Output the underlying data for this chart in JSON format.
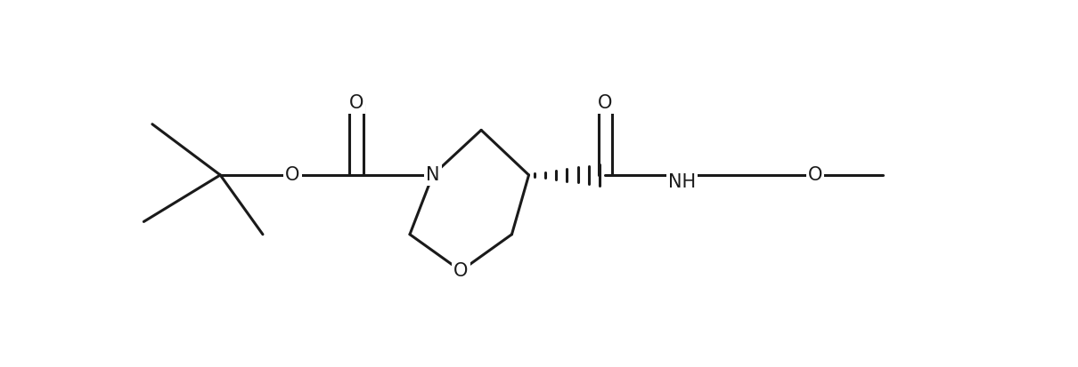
{
  "background_color": "#ffffff",
  "line_color": "#1a1a1a",
  "line_width": 2.2,
  "font_size": 15,
  "fig_width": 12.1,
  "fig_height": 4.13,
  "xlim": [
    0,
    10.8
  ],
  "ylim": [
    0.3,
    4.6
  ]
}
